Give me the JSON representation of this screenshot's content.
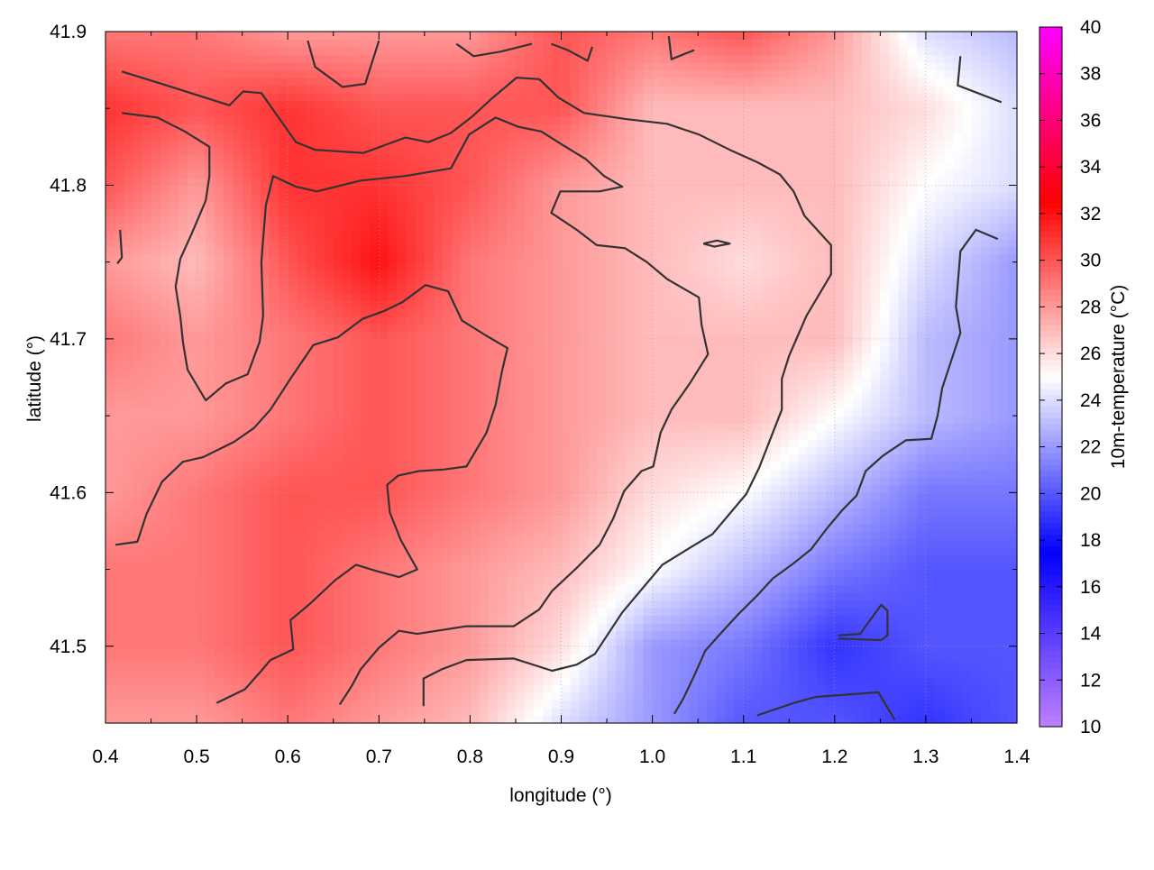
{
  "chart_data": {
    "type": "heatmap",
    "xlabel": "longitude (°)",
    "ylabel": "latitude (°)",
    "colorbar_label": "10m-temperature (°C)",
    "xlim": [
      0.4,
      1.4
    ],
    "ylim": [
      41.45,
      41.9
    ],
    "xticks": [
      "0.4",
      "0.5",
      "0.6",
      "0.7",
      "0.8",
      "0.9",
      "1.0",
      "1.1",
      "1.2",
      "1.3",
      "1.4"
    ],
    "yticks": [
      "41.5",
      "41.6",
      "41.7",
      "41.8",
      "41.9"
    ],
    "cb_range": [
      10,
      40
    ],
    "cb_ticks": [
      "10",
      "12",
      "14",
      "16",
      "18",
      "20",
      "22",
      "24",
      "26",
      "28",
      "30",
      "32",
      "34",
      "36",
      "38",
      "40"
    ],
    "grid": true,
    "palette": [
      {
        "v": 10,
        "color": "#c080ff"
      },
      {
        "v": 17.5,
        "color": "#0000ff"
      },
      {
        "v": 25,
        "color": "#ffffff"
      },
      {
        "v": 32.5,
        "color": "#ff0000"
      },
      {
        "v": 40,
        "color": "#ff00ff"
      }
    ],
    "grid_lon": [
      0.4,
      0.5,
      0.6,
      0.7,
      0.8,
      0.9,
      1.0,
      1.1,
      1.2,
      1.3,
      1.4
    ],
    "grid_lat": [
      41.9,
      41.85,
      41.8,
      41.75,
      41.7,
      41.65,
      41.6,
      41.55,
      41.5,
      41.45
    ],
    "temperature": [
      [
        29,
        29,
        28,
        28,
        28,
        30,
        29,
        30,
        28,
        24,
        23
      ],
      [
        31,
        30,
        31,
        30,
        30,
        30,
        27,
        27,
        27,
        26,
        24
      ],
      [
        30,
        28,
        31,
        31,
        30,
        28,
        27,
        27,
        27,
        25,
        24
      ],
      [
        28,
        27,
        30,
        32,
        29,
        28,
        27,
        26,
        27,
        24,
        22
      ],
      [
        29,
        28,
        29,
        30,
        29,
        28,
        27,
        27,
        27,
        23,
        22
      ],
      [
        28,
        28,
        29,
        30,
        29,
        28,
        27,
        27,
        25,
        23,
        22
      ],
      [
        28,
        29,
        30,
        30,
        29,
        28,
        26,
        25,
        23,
        21,
        21
      ],
      [
        29,
        29,
        30,
        29,
        28,
        27,
        25,
        23,
        21,
        20,
        20
      ],
      [
        29,
        29,
        30,
        29,
        28,
        26,
        22,
        21,
        19,
        20,
        20
      ],
      [
        28,
        28,
        29,
        28,
        27,
        24,
        22,
        20,
        20,
        19,
        20
      ]
    ],
    "contours": [
      [
        [
          0.418,
          41.874
        ],
        [
          0.467,
          41.865
        ],
        [
          0.536,
          41.852
        ],
        [
          0.551,
          41.861
        ],
        [
          0.571,
          41.86
        ],
        [
          0.609,
          41.828
        ],
        [
          0.63,
          41.823
        ],
        [
          0.683,
          41.821
        ],
        [
          0.729,
          41.831
        ],
        [
          0.754,
          41.828
        ],
        [
          0.779,
          41.834
        ],
        [
          0.803,
          41.845
        ],
        [
          0.823,
          41.856
        ],
        [
          0.851,
          41.87
        ],
        [
          0.876,
          41.869
        ],
        [
          0.897,
          41.857
        ],
        [
          0.925,
          41.847
        ],
        [
          0.972,
          41.843
        ],
        [
          1.016,
          41.84
        ],
        [
          1.051,
          41.833
        ],
        [
          1.085,
          41.823
        ],
        [
          1.115,
          41.815
        ],
        [
          1.14,
          41.807
        ],
        [
          1.155,
          41.796
        ],
        [
          1.167,
          41.78
        ],
        [
          1.196,
          41.761
        ],
        [
          1.196,
          41.742
        ],
        [
          1.169,
          41.715
        ],
        [
          1.15,
          41.689
        ],
        [
          1.142,
          41.674
        ],
        [
          1.142,
          41.654
        ],
        [
          1.117,
          41.616
        ],
        [
          1.103,
          41.599
        ],
        [
          1.066,
          41.573
        ],
        [
          1.041,
          41.564
        ],
        [
          1.011,
          41.553
        ],
        [
          0.967,
          41.522
        ],
        [
          0.937,
          41.495
        ],
        [
          0.917,
          41.488
        ],
        [
          0.89,
          41.484
        ],
        [
          0.848,
          41.492
        ],
        [
          0.796,
          41.491
        ],
        [
          0.769,
          41.485
        ],
        [
          0.749,
          41.479
        ],
        [
          0.749,
          41.461
        ]
      ],
      [
        [
          0.418,
          41.847
        ],
        [
          0.457,
          41.844
        ],
        [
          0.487,
          41.835
        ],
        [
          0.514,
          41.825
        ],
        [
          0.514,
          41.806
        ],
        [
          0.51,
          41.79
        ],
        [
          0.495,
          41.769
        ],
        [
          0.482,
          41.752
        ],
        [
          0.477,
          41.734
        ],
        [
          0.482,
          41.715
        ],
        [
          0.485,
          41.698
        ],
        [
          0.49,
          41.68
        ],
        [
          0.51,
          41.66
        ],
        [
          0.532,
          41.671
        ],
        [
          0.556,
          41.677
        ],
        [
          0.569,
          41.698
        ],
        [
          0.573,
          41.715
        ],
        [
          0.571,
          41.75
        ],
        [
          0.576,
          41.787
        ],
        [
          0.584,
          41.806
        ],
        [
          0.609,
          41.799
        ],
        [
          0.632,
          41.796
        ],
        [
          0.68,
          41.803
        ],
        [
          0.729,
          41.806
        ],
        [
          0.779,
          41.811
        ],
        [
          0.799,
          41.833
        ],
        [
          0.828,
          41.844
        ],
        [
          0.853,
          41.838
        ],
        [
          0.878,
          41.835
        ],
        [
          0.902,
          41.826
        ],
        [
          0.927,
          41.817
        ],
        [
          0.947,
          41.806
        ],
        [
          0.967,
          41.799
        ],
        [
          0.942,
          41.796
        ],
        [
          0.899,
          41.796
        ],
        [
          0.889,
          41.782
        ],
        [
          0.917,
          41.771
        ],
        [
          0.939,
          41.761
        ],
        [
          0.97,
          41.759
        ],
        [
          0.994,
          41.75
        ],
        [
          1.016,
          41.739
        ],
        [
          1.051,
          41.727
        ],
        [
          1.054,
          41.709
        ],
        [
          1.061,
          41.69
        ],
        [
          1.041,
          41.671
        ],
        [
          1.021,
          41.654
        ],
        [
          1.009,
          41.639
        ],
        [
          1.001,
          41.617
        ],
        [
          0.988,
          41.614
        ],
        [
          0.969,
          41.601
        ],
        [
          0.957,
          41.583
        ],
        [
          0.942,
          41.566
        ],
        [
          0.917,
          41.551
        ],
        [
          0.89,
          41.536
        ],
        [
          0.876,
          41.524
        ],
        [
          0.848,
          41.513
        ],
        [
          0.796,
          41.513
        ],
        [
          0.742,
          41.508
        ],
        [
          0.722,
          41.51
        ],
        [
          0.7,
          41.499
        ],
        [
          0.68,
          41.485
        ],
        [
          0.67,
          41.474
        ],
        [
          0.657,
          41.462
        ]
      ],
      [
        [
          0.411,
          41.566
        ],
        [
          0.435,
          41.568
        ],
        [
          0.445,
          41.586
        ],
        [
          0.462,
          41.607
        ],
        [
          0.485,
          41.62
        ],
        [
          0.507,
          41.623
        ],
        [
          0.541,
          41.633
        ],
        [
          0.563,
          41.642
        ],
        [
          0.581,
          41.654
        ],
        [
          0.604,
          41.675
        ],
        [
          0.628,
          41.696
        ],
        [
          0.655,
          41.701
        ],
        [
          0.682,
          41.713
        ],
        [
          0.705,
          41.718
        ],
        [
          0.726,
          41.724
        ],
        [
          0.751,
          41.735
        ],
        [
          0.776,
          41.731
        ],
        [
          0.791,
          41.712
        ],
        [
          0.818,
          41.702
        ],
        [
          0.841,
          41.694
        ],
        [
          0.835,
          41.679
        ],
        [
          0.828,
          41.657
        ],
        [
          0.818,
          41.639
        ],
        [
          0.796,
          41.617
        ],
        [
          0.771,
          41.615
        ],
        [
          0.744,
          41.614
        ],
        [
          0.721,
          41.611
        ],
        [
          0.709,
          41.605
        ],
        [
          0.712,
          41.587
        ],
        [
          0.724,
          41.569
        ],
        [
          0.742,
          41.55
        ],
        [
          0.722,
          41.545
        ],
        [
          0.697,
          41.549
        ],
        [
          0.675,
          41.553
        ],
        [
          0.652,
          41.543
        ],
        [
          0.625,
          41.528
        ],
        [
          0.603,
          41.517
        ],
        [
          0.606,
          41.498
        ],
        [
          0.581,
          41.491
        ],
        [
          0.571,
          41.484
        ],
        [
          0.553,
          41.472
        ],
        [
          0.522,
          41.463
        ]
      ],
      [
        [
          1.338,
          41.884
        ],
        [
          1.335,
          41.865
        ],
        [
          1.383,
          41.854
        ]
      ],
      [
        [
          1.379,
          41.765
        ],
        [
          1.355,
          41.771
        ],
        [
          1.338,
          41.757
        ],
        [
          1.333,
          41.721
        ],
        [
          1.338,
          41.704
        ],
        [
          1.328,
          41.686
        ],
        [
          1.318,
          41.668
        ],
        [
          1.313,
          41.65
        ],
        [
          1.306,
          41.635
        ],
        [
          1.278,
          41.634
        ],
        [
          1.253,
          41.624
        ],
        [
          1.234,
          41.614
        ],
        [
          1.224,
          41.598
        ],
        [
          1.209,
          41.589
        ],
        [
          1.192,
          41.577
        ],
        [
          1.174,
          41.563
        ],
        [
          1.155,
          41.554
        ],
        [
          1.132,
          41.544
        ],
        [
          1.115,
          41.533
        ],
        [
          1.093,
          41.52
        ],
        [
          1.073,
          41.507
        ],
        [
          1.058,
          41.497
        ],
        [
          1.046,
          41.481
        ],
        [
          1.034,
          41.466
        ],
        [
          1.024,
          41.456
        ]
      ],
      [
        [
          1.204,
          41.507
        ],
        [
          1.228,
          41.508
        ],
        [
          1.251,
          41.527
        ],
        [
          1.258,
          41.523
        ],
        [
          1.258,
          41.507
        ],
        [
          1.251,
          41.504
        ],
        [
          1.204,
          41.505
        ]
      ],
      [
        [
          1.115,
          41.455
        ],
        [
          1.155,
          41.463
        ],
        [
          1.179,
          41.467
        ],
        [
          1.248,
          41.47
        ],
        [
          1.266,
          41.452
        ]
      ],
      [
        [
          0.622,
          41.894
        ],
        [
          0.63,
          41.877
        ],
        [
          0.66,
          41.864
        ],
        [
          0.685,
          41.866
        ],
        [
          0.7,
          41.894
        ]
      ],
      [
        [
          0.785,
          41.892
        ],
        [
          0.804,
          41.884
        ],
        [
          0.834,
          41.887
        ],
        [
          0.868,
          41.892
        ]
      ],
      [
        [
          0.889,
          41.892
        ],
        [
          0.907,
          41.888
        ],
        [
          0.929,
          41.881
        ],
        [
          0.934,
          41.89
        ]
      ],
      [
        [
          1.018,
          41.897
        ],
        [
          1.021,
          41.882
        ],
        [
          1.046,
          41.888
        ]
      ],
      [
        [
          1.056,
          41.762
        ],
        [
          1.071,
          41.764
        ],
        [
          1.085,
          41.762
        ],
        [
          1.068,
          41.76
        ],
        [
          1.056,
          41.762
        ]
      ],
      [
        [
          0.416,
          41.771
        ],
        [
          0.418,
          41.753
        ],
        [
          0.413,
          41.749
        ]
      ]
    ]
  }
}
